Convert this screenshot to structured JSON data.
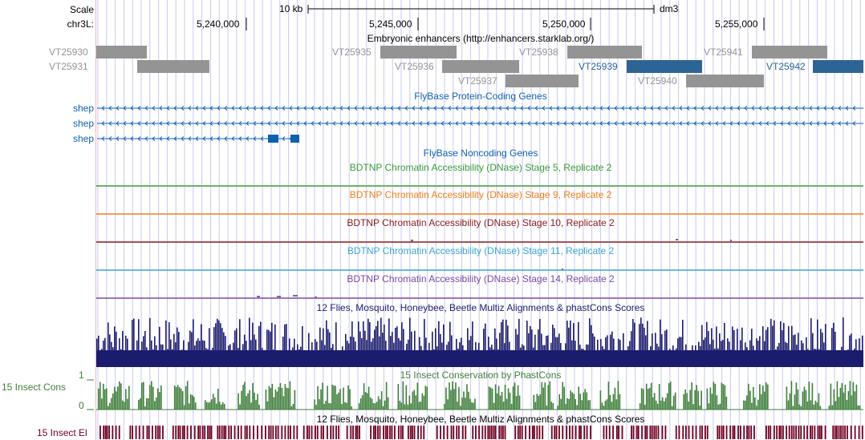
{
  "ruler": {
    "scale_label": "Scale",
    "chrom_label": "chr3L:",
    "scale_bar_text": "10 kb",
    "assembly": "dm3",
    "ticks": [
      "5,240,000",
      "5,245,000",
      "5,250,000",
      "5,255,000"
    ]
  },
  "enhancers": {
    "title": "Embryonic enhancers (http://enhancers.starklab.org/)",
    "items": [
      {
        "id": "VT25930",
        "highlight": false
      },
      {
        "id": "VT25931",
        "highlight": false
      },
      {
        "id": "VT25935",
        "highlight": false
      },
      {
        "id": "VT25936",
        "highlight": false
      },
      {
        "id": "VT25937",
        "highlight": false
      },
      {
        "id": "VT25938",
        "highlight": false
      },
      {
        "id": "VT25939",
        "highlight": true
      },
      {
        "id": "VT25940",
        "highlight": false
      },
      {
        "id": "VT25941",
        "highlight": false
      },
      {
        "id": "VT25942",
        "highlight": true
      }
    ]
  },
  "genes": {
    "title": "FlyBase Protein-Coding Genes",
    "rows": [
      {
        "name": "shep"
      },
      {
        "name": "shep"
      },
      {
        "name": "shep"
      }
    ]
  },
  "noncoding": {
    "title": "FlyBase Noncoding Genes"
  },
  "dnase_tracks": [
    {
      "title": "BDTNP Chromatin Accessibility (DNase) Stage 5, Replicate 2",
      "color": "#3a9b3a"
    },
    {
      "title": "BDTNP Chromatin Accessibility (DNase) Stage 9, Replicate 2",
      "color": "#f07f1d"
    },
    {
      "title": "BDTNP Chromatin Accessibility (DNase) Stage 10, Replicate 2",
      "color": "#8b1a1a"
    },
    {
      "title": "BDTNP Chromatin Accessibility (DNase) Stage 11, Replicate 2",
      "color": "#3aa6d4"
    },
    {
      "title": "BDTNP Chromatin Accessibility (DNase) Stage 14, Replicate 2",
      "color": "#7a4aa6"
    }
  ],
  "multiz": {
    "title": "12 Flies, Mosquito, Honeybee, Beetle Multiz Alignments & phastCons Scores",
    "color": "#1c1c6e"
  },
  "phastcons": {
    "title": "15 Insect Conservation by PhastCons",
    "side_label": "15 Insect Cons",
    "axis_top": "1",
    "axis_bottom": "0",
    "color": "#3f7f3a"
  },
  "elements": {
    "title": "12 Flies, Mosquito, Honeybee, Beetle Multiz Alignments & phastCons Scores",
    "side_label": "15 Insect El",
    "color": "#700020"
  },
  "colors": {
    "grey_feature": "#949494",
    "blue_feature": "#2d6496",
    "gene_blue": "#1060b0",
    "guide": "#c8c8f0",
    "left_edge": "#f0b4b4"
  }
}
